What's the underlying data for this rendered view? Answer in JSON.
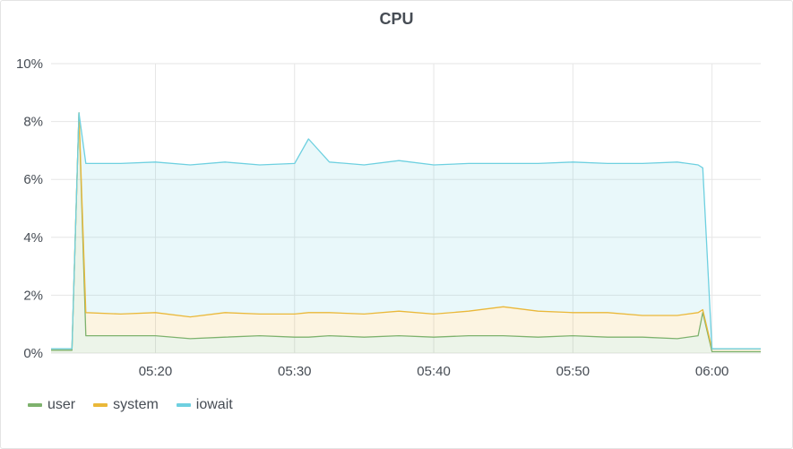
{
  "panel": {
    "title": "CPU"
  },
  "chart_data": {
    "type": "area",
    "title": "CPU",
    "xlabel": "",
    "ylabel": "",
    "x_unit": "time",
    "x_range": [
      "05:12:30",
      "06:03:30"
    ],
    "x_ticks": [
      "05:20",
      "05:30",
      "05:40",
      "05:50",
      "06:00"
    ],
    "y_range": [
      0,
      10
    ],
    "y_unit": "%",
    "y_ticks": [
      "0%",
      "2%",
      "4%",
      "6%",
      "8%",
      "10%"
    ],
    "grid": true,
    "stacked": true,
    "legend_position": "bottom-left",
    "x": [
      "05:12:30",
      "05:14:00",
      "05:14:30",
      "05:15:00",
      "05:17:30",
      "05:20:00",
      "05:22:30",
      "05:25:00",
      "05:27:30",
      "05:30:00",
      "05:31:00",
      "05:32:30",
      "05:35:00",
      "05:37:30",
      "05:40:00",
      "05:42:30",
      "05:45:00",
      "05:47:30",
      "05:50:00",
      "05:52:30",
      "05:55:00",
      "05:57:30",
      "05:59:00",
      "05:59:20",
      "06:00:00",
      "06:03:30"
    ],
    "series": [
      {
        "name": "user",
        "color": "#7eb26d",
        "values": [
          0.1,
          0.1,
          8.3,
          0.6,
          0.6,
          0.6,
          0.5,
          0.55,
          0.6,
          0.55,
          0.55,
          0.6,
          0.55,
          0.6,
          0.55,
          0.6,
          0.6,
          0.55,
          0.6,
          0.55,
          0.55,
          0.5,
          0.6,
          1.4,
          0.05,
          0.05
        ]
      },
      {
        "name": "system",
        "color": "#eab839",
        "values": [
          0.05,
          0.05,
          0.0,
          0.8,
          0.75,
          0.8,
          0.75,
          0.85,
          0.75,
          0.8,
          0.85,
          0.8,
          0.8,
          0.85,
          0.8,
          0.85,
          1.0,
          0.9,
          0.8,
          0.85,
          0.75,
          0.8,
          0.8,
          0.1,
          0.1,
          0.1
        ]
      },
      {
        "name": "iowait",
        "color": "#6ed0e0",
        "values": [
          0.0,
          0.0,
          0.0,
          5.15,
          5.2,
          5.2,
          5.25,
          5.2,
          5.15,
          5.2,
          6.0,
          5.2,
          5.15,
          5.2,
          5.15,
          5.1,
          4.95,
          5.1,
          5.2,
          5.15,
          5.25,
          5.3,
          5.1,
          4.9,
          0.0,
          0.0
        ]
      }
    ]
  },
  "legend": [
    {
      "label": "user",
      "color": "#7eb26d"
    },
    {
      "label": "system",
      "color": "#eab839"
    },
    {
      "label": "iowait",
      "color": "#6ed0e0"
    }
  ]
}
